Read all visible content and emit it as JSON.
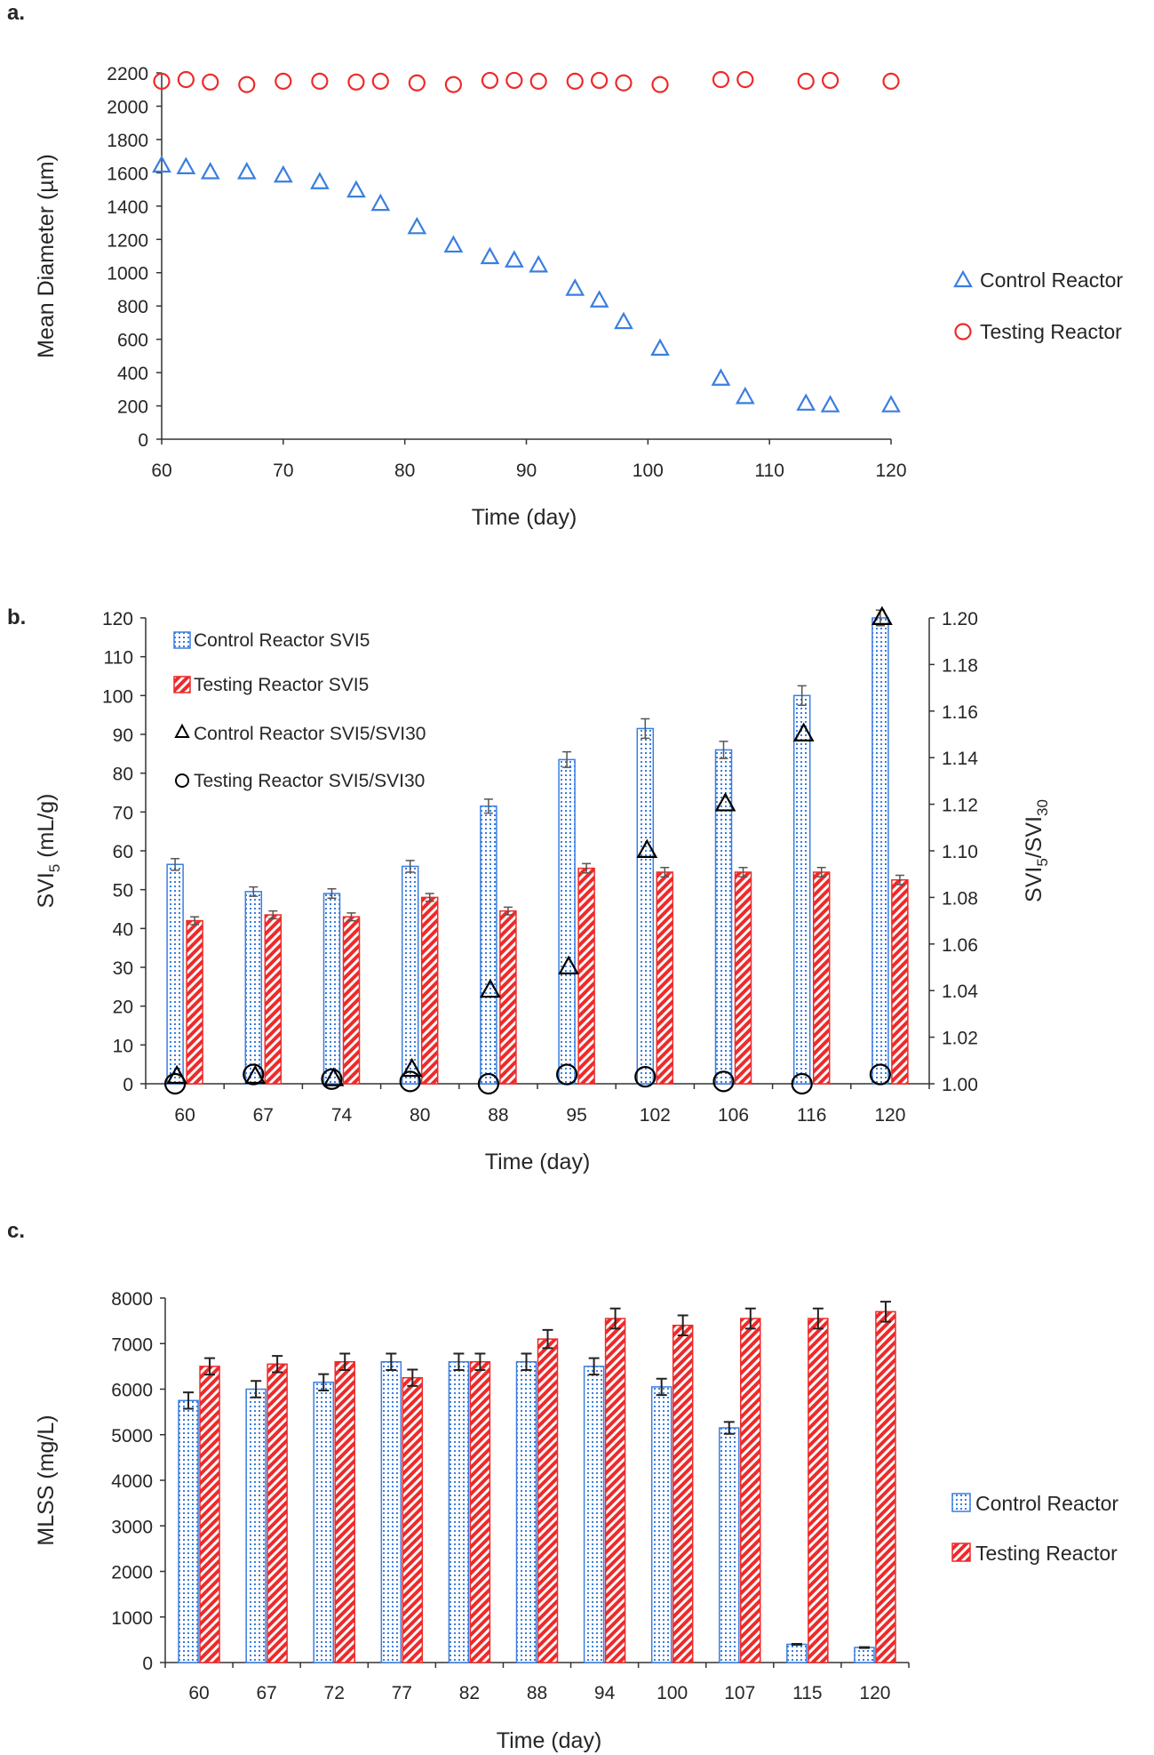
{
  "colors": {
    "control": "#3a7ee0",
    "testing": "#ee2a2a",
    "marker_b": "#000000",
    "axis": "#333333",
    "errbar": "#222222"
  },
  "chart_data": [
    {
      "panel_label": "a.",
      "type": "scatter",
      "xlabel": "Time (day)",
      "ylabel": "Mean Diameter (µm)",
      "xlim": [
        60,
        120
      ],
      "ylim": [
        0,
        2200
      ],
      "xticks": [
        "60",
        "70",
        "80",
        "90",
        "100",
        "110",
        "120"
      ],
      "yticks": [
        "0",
        "200",
        "400",
        "600",
        "800",
        "1000",
        "1200",
        "1400",
        "1600",
        "1800",
        "2000",
        "2200"
      ],
      "legend_position": "right",
      "series": [
        {
          "name": "Control Reactor",
          "marker": "triangle",
          "x": [
            60,
            62,
            64,
            67,
            70,
            73,
            76,
            78,
            81,
            84,
            87,
            89,
            91,
            94,
            96,
            98,
            101,
            106,
            108,
            113,
            115,
            120
          ],
          "y": [
            1640,
            1630,
            1600,
            1600,
            1580,
            1540,
            1490,
            1410,
            1270,
            1160,
            1090,
            1070,
            1040,
            900,
            830,
            700,
            540,
            360,
            250,
            210,
            200,
            200
          ]
        },
        {
          "name": "Testing Reactor",
          "marker": "circle",
          "x": [
            60,
            62,
            64,
            67,
            70,
            73,
            76,
            78,
            81,
            84,
            87,
            89,
            91,
            94,
            96,
            98,
            101,
            106,
            108,
            113,
            115,
            120
          ],
          "y": [
            2150,
            2160,
            2145,
            2130,
            2150,
            2150,
            2145,
            2150,
            2140,
            2130,
            2155,
            2155,
            2150,
            2150,
            2155,
            2140,
            2130,
            2160,
            2160,
            2150,
            2155,
            2150
          ]
        }
      ]
    },
    {
      "panel_label": "b.",
      "type": "bar",
      "xlabel": "Time (day)",
      "ylabel": "SVI5 (mL/g)",
      "ylabel_main": "SVI",
      "ylabel_sub": "5",
      "ylabel_tail": " (mL/g)",
      "y2label": "SVI5/SVI30",
      "y2label_main": "SVI",
      "y2label_sub": "5",
      "y2label_mid": "/SVI",
      "y2label_sub2": "30",
      "categories": [
        "60",
        "67",
        "74",
        "80",
        "88",
        "95",
        "102",
        "106",
        "116",
        "120"
      ],
      "ylim": [
        0,
        120
      ],
      "y2lim": [
        1.0,
        1.2
      ],
      "yticks": [
        "0",
        "10",
        "20",
        "30",
        "40",
        "50",
        "60",
        "70",
        "80",
        "90",
        "100",
        "110",
        "120"
      ],
      "y2ticks": [
        "1.00",
        "1.02",
        "1.04",
        "1.06",
        "1.08",
        "1.10",
        "1.12",
        "1.14",
        "1.16",
        "1.18",
        "1.20"
      ],
      "legend_position": "top-left",
      "series": [
        {
          "name": "Control Reactor SVI5",
          "kind": "bar",
          "values": [
            56.5,
            49.5,
            49,
            56,
            71.5,
            83.5,
            91.5,
            86,
            100,
            120
          ],
          "errors": [
            1.5,
            1.2,
            1.2,
            1.5,
            1.8,
            2.0,
            2.5,
            2.2,
            2.5,
            2.0
          ]
        },
        {
          "name": "Testing Reactor SVI5",
          "kind": "bar",
          "values": [
            42,
            43.5,
            43,
            48,
            44.5,
            55.5,
            54.5,
            54.5,
            54.5,
            52.5
          ],
          "errors": [
            1.0,
            1.0,
            1.0,
            1.0,
            1.0,
            1.2,
            1.2,
            1.2,
            1.2,
            1.2
          ]
        },
        {
          "name": "Control Reactor SVI5/SVI30",
          "kind": "triangle",
          "axis": "y2",
          "values": [
            1.003,
            1.003,
            1.002,
            1.006,
            1.04,
            1.05,
            1.1,
            1.12,
            1.15,
            1.2
          ]
        },
        {
          "name": "Testing Reactor SVI5/SVI30",
          "kind": "circle",
          "axis": "y2",
          "values": [
            1.0,
            1.004,
            1.002,
            1.001,
            1.0,
            1.004,
            1.003,
            1.001,
            1.0,
            1.004
          ]
        }
      ]
    },
    {
      "panel_label": "c.",
      "type": "bar",
      "xlabel": "Time (day)",
      "ylabel": "MLSS (mg/L)",
      "categories": [
        "60",
        "67",
        "72",
        "77",
        "82",
        "88",
        "94",
        "100",
        "107",
        "115",
        "120"
      ],
      "ylim": [
        0,
        8000
      ],
      "yticks": [
        "0",
        "1000",
        "2000",
        "3000",
        "4000",
        "5000",
        "6000",
        "7000",
        "8000"
      ],
      "legend_position": "right",
      "series": [
        {
          "name": "Control Reactor",
          "values": [
            5750,
            6000,
            6150,
            6600,
            6600,
            6600,
            6500,
            6050,
            5150,
            400,
            330
          ],
          "errors": [
            180,
            180,
            180,
            180,
            180,
            180,
            180,
            180,
            130,
            10,
            10
          ]
        },
        {
          "name": "Testing Reactor",
          "values": [
            6500,
            6550,
            6600,
            6250,
            6600,
            7100,
            7550,
            7400,
            7550,
            7550,
            7700
          ],
          "errors": [
            180,
            180,
            180,
            180,
            180,
            200,
            220,
            220,
            220,
            220,
            220
          ]
        }
      ]
    }
  ]
}
